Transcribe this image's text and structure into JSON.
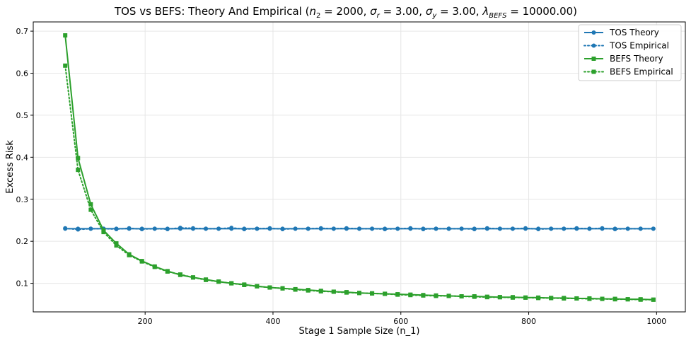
{
  "chart_data": {
    "type": "line",
    "title": {
      "prefix": "TOS vs BEFS: Theory And Empirical (",
      "n2": "n",
      "n2_sub": "2",
      "n2_value": " = 2000, ",
      "sr": "σ",
      "sr_sub": "r",
      "sr_value": " = 3.00, ",
      "sy": "σ",
      "sy_sub": "y",
      "sy_value": " = 3.00, ",
      "lam": "λ",
      "lam_sub": "BEFS",
      "lam_value": " = 10000.00)"
    },
    "xlabel": "Stage 1 Sample Size (n_1)",
    "ylabel": "Excess Risk",
    "xlim": [
      25,
      1045
    ],
    "ylim": [
      0.032,
      0.722
    ],
    "xticks": [
      200,
      400,
      600,
      800,
      1000
    ],
    "yticks": [
      0.1,
      0.2,
      0.3,
      0.4,
      0.5,
      0.6,
      0.7
    ],
    "ytick_labels": [
      "0.1",
      "0.2",
      "0.3",
      "0.4",
      "0.5",
      "0.6",
      "0.7"
    ],
    "grid": true,
    "legend_position": "top-right",
    "x": [
      75,
      95,
      115,
      135,
      155,
      175,
      195,
      215,
      235,
      255,
      275,
      295,
      315,
      335,
      355,
      375,
      395,
      415,
      435,
      455,
      475,
      495,
      515,
      535,
      555,
      575,
      595,
      615,
      635,
      655,
      675,
      695,
      715,
      735,
      755,
      775,
      795,
      815,
      835,
      855,
      875,
      895,
      915,
      935,
      955,
      975,
      995
    ],
    "series": [
      {
        "name": "TOS Theory",
        "color": "#1f77b4",
        "linestyle": "solid",
        "marker": "circle",
        "values": [
          0.23,
          0.23,
          0.23,
          0.23,
          0.23,
          0.23,
          0.23,
          0.23,
          0.23,
          0.23,
          0.23,
          0.23,
          0.23,
          0.23,
          0.23,
          0.23,
          0.23,
          0.23,
          0.23,
          0.23,
          0.23,
          0.23,
          0.23,
          0.23,
          0.23,
          0.23,
          0.23,
          0.23,
          0.23,
          0.23,
          0.23,
          0.23,
          0.23,
          0.23,
          0.23,
          0.23,
          0.23,
          0.23,
          0.23,
          0.23,
          0.23,
          0.23,
          0.23,
          0.23,
          0.23,
          0.23,
          0.23
        ]
      },
      {
        "name": "TOS Empirical",
        "color": "#1f77b4",
        "linestyle": "dotted",
        "marker": "circle",
        "values": [
          0.231,
          0.228,
          0.23,
          0.23,
          0.229,
          0.231,
          0.229,
          0.23,
          0.229,
          0.232,
          0.231,
          0.23,
          0.23,
          0.232,
          0.229,
          0.23,
          0.231,
          0.229,
          0.23,
          0.23,
          0.231,
          0.23,
          0.231,
          0.23,
          0.23,
          0.229,
          0.23,
          0.231,
          0.229,
          0.23,
          0.23,
          0.23,
          0.229,
          0.231,
          0.23,
          0.23,
          0.231,
          0.229,
          0.23,
          0.23,
          0.231,
          0.23,
          0.231,
          0.229,
          0.23,
          0.23,
          0.23
        ]
      },
      {
        "name": "BEFS Theory",
        "color": "#2ca02c",
        "linestyle": "solid",
        "marker": "square",
        "values": [
          0.69,
          0.398,
          0.288,
          0.226,
          0.195,
          0.169,
          0.153,
          0.14,
          0.129,
          0.12,
          0.114,
          0.109,
          0.104,
          0.1,
          0.097,
          0.093,
          0.09,
          0.088,
          0.086,
          0.084,
          0.082,
          0.08,
          0.079,
          0.077,
          0.076,
          0.075,
          0.074,
          0.073,
          0.072,
          0.071,
          0.07,
          0.069,
          0.069,
          0.068,
          0.067,
          0.067,
          0.066,
          0.066,
          0.065,
          0.065,
          0.064,
          0.064,
          0.063,
          0.063,
          0.062,
          0.062,
          0.061
        ]
      },
      {
        "name": "BEFS Empirical",
        "color": "#2ca02c",
        "linestyle": "dotted",
        "marker": "square",
        "values": [
          0.618,
          0.37,
          0.275,
          0.222,
          0.19,
          0.167,
          0.152,
          0.139,
          0.128,
          0.121,
          0.114,
          0.108,
          0.104,
          0.1,
          0.096,
          0.093,
          0.09,
          0.088,
          0.085,
          0.083,
          0.081,
          0.08,
          0.078,
          0.077,
          0.076,
          0.075,
          0.073,
          0.072,
          0.071,
          0.07,
          0.07,
          0.069,
          0.068,
          0.067,
          0.067,
          0.066,
          0.066,
          0.065,
          0.065,
          0.064,
          0.064,
          0.063,
          0.063,
          0.062,
          0.062,
          0.061,
          0.061
        ]
      }
    ]
  }
}
